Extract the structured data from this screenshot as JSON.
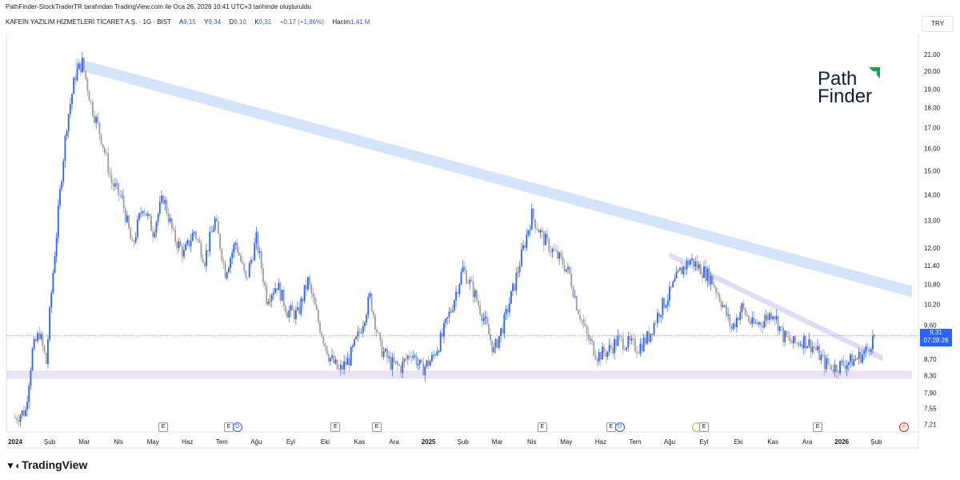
{
  "header": {
    "credit": "PathFinder-StockTraderTR tarafından TradingView.com ile Oca 26, 2026 10:41 UTC+3 tarihinde oluşturuldu",
    "symbol_name": "KAFEİN YAZILIM HİZMETLERİ TİCARET A.Ş. · 1G · BIST",
    "open_label": "A",
    "open_value": "9,15",
    "high_label": "Y",
    "high_value": "9,34",
    "low_label": "D",
    "low_value": "9,10",
    "close_label": "K",
    "close_value": "9,31",
    "change": "+0,17 (+1,86%)",
    "volume_label": "Hacim",
    "volume_value": "1,41 M",
    "currency": "TRY"
  },
  "price_tag": {
    "price": "9,31",
    "countdown": "07:28:26"
  },
  "logos": {
    "tradingview": "TradingView",
    "pathfinder_line1": "Path",
    "pathfinder_line2": "Finder"
  },
  "colors": {
    "up": "#2962ff",
    "down": "#9e9e9e",
    "trend_band": "#cfe2fb",
    "support_band": "#e6def5",
    "minor_trend": "#e0d6f2",
    "last_price_line": "#2962ff",
    "pathfinder_green": "#1aa34a",
    "pathfinder_navy": "#0b1f3a"
  },
  "events": [
    {
      "label": "E",
      "type": "earnings",
      "month_index": 4.3
    },
    {
      "label": "E",
      "type": "earnings",
      "month_index": 6.2
    },
    {
      "label": "D",
      "type": "dividend",
      "month_index": 6.45
    },
    {
      "label": "E",
      "type": "earnings",
      "month_index": 9.3
    },
    {
      "label": "E",
      "type": "earnings",
      "month_index": 10.5
    },
    {
      "label": "E",
      "type": "earnings",
      "month_index": 15.3
    },
    {
      "label": "E",
      "type": "earnings",
      "month_index": 17.3
    },
    {
      "label": "D",
      "type": "dividend",
      "month_index": 17.55
    },
    {
      "label": "",
      "type": "split",
      "month_index": 19.8
    },
    {
      "label": "E",
      "type": "earnings",
      "month_index": 20.0
    },
    {
      "label": "E",
      "type": "earnings",
      "month_index": 23.3
    },
    {
      "label": "⚡",
      "type": "flash",
      "month_index": 25.8
    }
  ],
  "chart_data": {
    "type": "candlestick",
    "title": "KAFEİN YAZILIM HİZMETLERİ TİCARET A.Ş. · 1G · BIST",
    "scale": "log",
    "y_ticks": [
      "21,00",
      "20,00",
      "19,00",
      "18,00",
      "17,00",
      "16,00",
      "15,00",
      "14,00",
      "13,00",
      "12,00",
      "11,40",
      "10,80",
      "10,20",
      "9,60",
      "8,70",
      "8,30",
      "7,90",
      "7,55",
      "7,21"
    ],
    "y_tick_values": [
      21.0,
      20.0,
      19.0,
      18.0,
      17.0,
      16.0,
      15.0,
      14.0,
      13.0,
      12.0,
      11.4,
      10.8,
      10.2,
      9.6,
      8.7,
      8.3,
      7.9,
      7.55,
      7.21
    ],
    "ylim": [
      7.05,
      22.2
    ],
    "x_ticks": [
      {
        "label": "2024",
        "month_index": 0,
        "bold": true
      },
      {
        "label": "Şub",
        "month_index": 1
      },
      {
        "label": "Mar",
        "month_index": 2
      },
      {
        "label": "Nis",
        "month_index": 3
      },
      {
        "label": "May",
        "month_index": 4
      },
      {
        "label": "Haz",
        "month_index": 5
      },
      {
        "label": "Tem",
        "month_index": 6
      },
      {
        "label": "Ağu",
        "month_index": 7
      },
      {
        "label": "Eyl",
        "month_index": 8
      },
      {
        "label": "Eki",
        "month_index": 9
      },
      {
        "label": "Kas",
        "month_index": 10
      },
      {
        "label": "Ara",
        "month_index": 11
      },
      {
        "label": "2025",
        "month_index": 12,
        "bold": true
      },
      {
        "label": "Şub",
        "month_index": 13
      },
      {
        "label": "Mar",
        "month_index": 14
      },
      {
        "label": "Nis",
        "month_index": 15
      },
      {
        "label": "May",
        "month_index": 16
      },
      {
        "label": "Haz",
        "month_index": 17
      },
      {
        "label": "Tem",
        "month_index": 18
      },
      {
        "label": "Ağu",
        "month_index": 19
      },
      {
        "label": "Eyl",
        "month_index": 20
      },
      {
        "label": "Eki",
        "month_index": 21
      },
      {
        "label": "Kas",
        "month_index": 22
      },
      {
        "label": "Ara",
        "month_index": 23
      },
      {
        "label": "2026",
        "month_index": 24,
        "bold": true
      },
      {
        "label": "Şub",
        "month_index": 25
      }
    ],
    "price_path": [
      [
        0.0,
        7.35
      ],
      [
        0.3,
        7.5
      ],
      [
        0.5,
        8.9
      ],
      [
        0.7,
        9.4
      ],
      [
        0.9,
        8.6
      ],
      [
        1.2,
        12.5
      ],
      [
        1.5,
        17.2
      ],
      [
        1.75,
        19.8
      ],
      [
        1.95,
        20.5
      ],
      [
        2.2,
        18.2
      ],
      [
        2.5,
        16.5
      ],
      [
        2.8,
        14.5
      ],
      [
        3.1,
        13.8
      ],
      [
        3.4,
        12.0
      ],
      [
        3.7,
        13.6
      ],
      [
        4.0,
        12.6
      ],
      [
        4.3,
        13.9
      ],
      [
        4.6,
        12.4
      ],
      [
        4.9,
        11.8
      ],
      [
        5.2,
        12.6
      ],
      [
        5.5,
        11.6
      ],
      [
        5.8,
        13.0
      ],
      [
        6.1,
        11.2
      ],
      [
        6.4,
        12.2
      ],
      [
        6.7,
        10.9
      ],
      [
        7.0,
        12.3
      ],
      [
        7.3,
        10.4
      ],
      [
        7.6,
        10.8
      ],
      [
        7.9,
        10.0
      ],
      [
        8.2,
        9.9
      ],
      [
        8.5,
        10.9
      ],
      [
        8.8,
        9.7
      ],
      [
        9.1,
        8.8
      ],
      [
        9.4,
        8.4
      ],
      [
        9.7,
        8.7
      ],
      [
        10.0,
        9.4
      ],
      [
        10.3,
        10.4
      ],
      [
        10.6,
        9.0
      ],
      [
        10.9,
        8.6
      ],
      [
        11.2,
        8.5
      ],
      [
        11.5,
        8.9
      ],
      [
        11.8,
        8.45
      ],
      [
        12.1,
        8.7
      ],
      [
        12.4,
        9.3
      ],
      [
        12.7,
        10.2
      ],
      [
        13.0,
        11.3
      ],
      [
        13.3,
        10.6
      ],
      [
        13.6,
        9.8
      ],
      [
        13.9,
        8.9
      ],
      [
        14.2,
        9.7
      ],
      [
        14.5,
        10.8
      ],
      [
        14.8,
        12.2
      ],
      [
        15.0,
        13.2
      ],
      [
        15.3,
        12.4
      ],
      [
        15.6,
        11.9
      ],
      [
        15.9,
        11.5
      ],
      [
        16.1,
        11.1
      ],
      [
        16.3,
        10.2
      ],
      [
        16.6,
        9.3
      ],
      [
        16.9,
        8.8
      ],
      [
        17.2,
        8.9
      ],
      [
        17.5,
        9.2
      ],
      [
        17.8,
        9.1
      ],
      [
        18.1,
        9.0
      ],
      [
        18.4,
        9.3
      ],
      [
        18.7,
        10.0
      ],
      [
        19.0,
        10.5
      ],
      [
        19.3,
        11.2
      ],
      [
        19.6,
        11.6
      ],
      [
        19.9,
        11.3
      ],
      [
        20.2,
        11.0
      ],
      [
        20.5,
        10.3
      ],
      [
        20.8,
        9.5
      ],
      [
        21.1,
        10.1
      ],
      [
        21.4,
        9.6
      ],
      [
        21.7,
        9.7
      ],
      [
        22.0,
        10.0
      ],
      [
        22.3,
        9.3
      ],
      [
        22.6,
        9.1
      ],
      [
        22.9,
        9.2
      ],
      [
        23.2,
        9.0
      ],
      [
        23.5,
        8.6
      ],
      [
        23.8,
        8.5
      ],
      [
        24.1,
        8.6
      ],
      [
        24.4,
        8.7
      ],
      [
        24.7,
        8.9
      ],
      [
        24.95,
        9.31
      ]
    ],
    "drawings": {
      "main_trendline": {
        "from": [
          1.75,
          20.6
        ],
        "to": [
          28.0,
          10.1
        ]
      },
      "support_zone": {
        "from_index": -0.2,
        "to_index": 28.0,
        "low": 8.22,
        "high": 8.42
      },
      "minor_trendline": {
        "from": [
          19.0,
          11.8
        ],
        "to": [
          25.2,
          8.75
        ]
      },
      "last_price": 9.31
    }
  }
}
